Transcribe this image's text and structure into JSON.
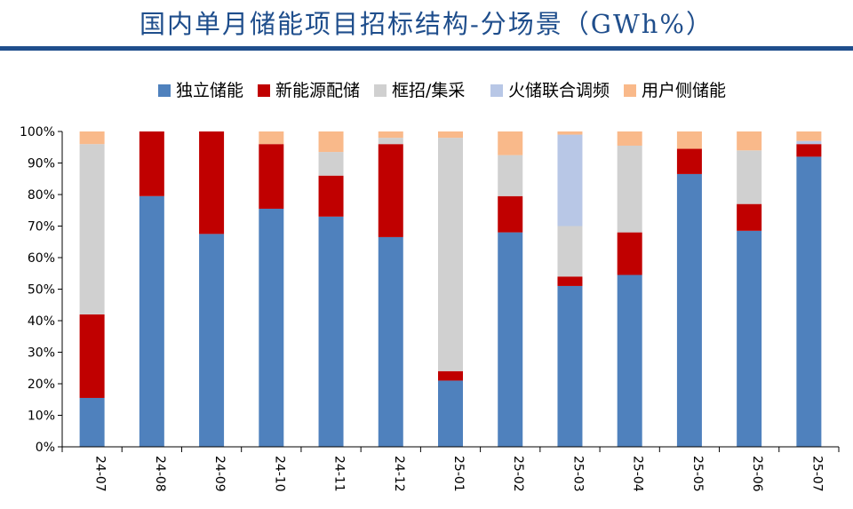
{
  "header": {
    "title": "国内单月储能项目招标结构-分场景（GWh%）"
  },
  "chart_data": {
    "type": "bar",
    "stacked": true,
    "categories": [
      "24-07",
      "24-08",
      "24-09",
      "24-10",
      "24-11",
      "24-12",
      "25-01",
      "25-02",
      "25-03",
      "25-04",
      "25-05",
      "25-06",
      "25-07"
    ],
    "series": [
      {
        "name": "独立储能",
        "color": "#4f81bd",
        "values": [
          15.5,
          79.5,
          67.5,
          75.5,
          73,
          66.5,
          21,
          68,
          51,
          54.5,
          86.5,
          68.5,
          92
        ]
      },
      {
        "name": "新能源配储",
        "color": "#c00000",
        "values": [
          26.5,
          20.5,
          32.5,
          20.5,
          13,
          29.5,
          3,
          11.5,
          3,
          13.5,
          8,
          8.5,
          4
        ]
      },
      {
        "name": "框招/集采",
        "color": "#d0d0d0",
        "values": [
          54,
          0,
          0,
          0,
          7.5,
          2,
          74,
          13,
          16,
          27.5,
          0,
          17,
          0
        ]
      },
      {
        "name": "火储联合调频",
        "color": "#b8c7e6",
        "values": [
          0,
          0,
          0,
          0,
          0,
          0,
          0,
          0,
          29,
          0,
          0,
          0,
          1
        ]
      },
      {
        "name": "用户侧储能",
        "color": "#f9b98a",
        "values": [
          4,
          0,
          0,
          4,
          6.5,
          2,
          2,
          7.5,
          1,
          4.5,
          5.5,
          6,
          3
        ]
      }
    ],
    "ylim": [
      0,
      100
    ],
    "yticks": [
      0,
      10,
      20,
      30,
      40,
      50,
      60,
      70,
      80,
      90,
      100
    ],
    "ytick_labels": [
      "0%",
      "10%",
      "20%",
      "30%",
      "40%",
      "50%",
      "60%",
      "70%",
      "80%",
      "90%",
      "100%"
    ],
    "legend_position": "top-center",
    "grid": false
  }
}
